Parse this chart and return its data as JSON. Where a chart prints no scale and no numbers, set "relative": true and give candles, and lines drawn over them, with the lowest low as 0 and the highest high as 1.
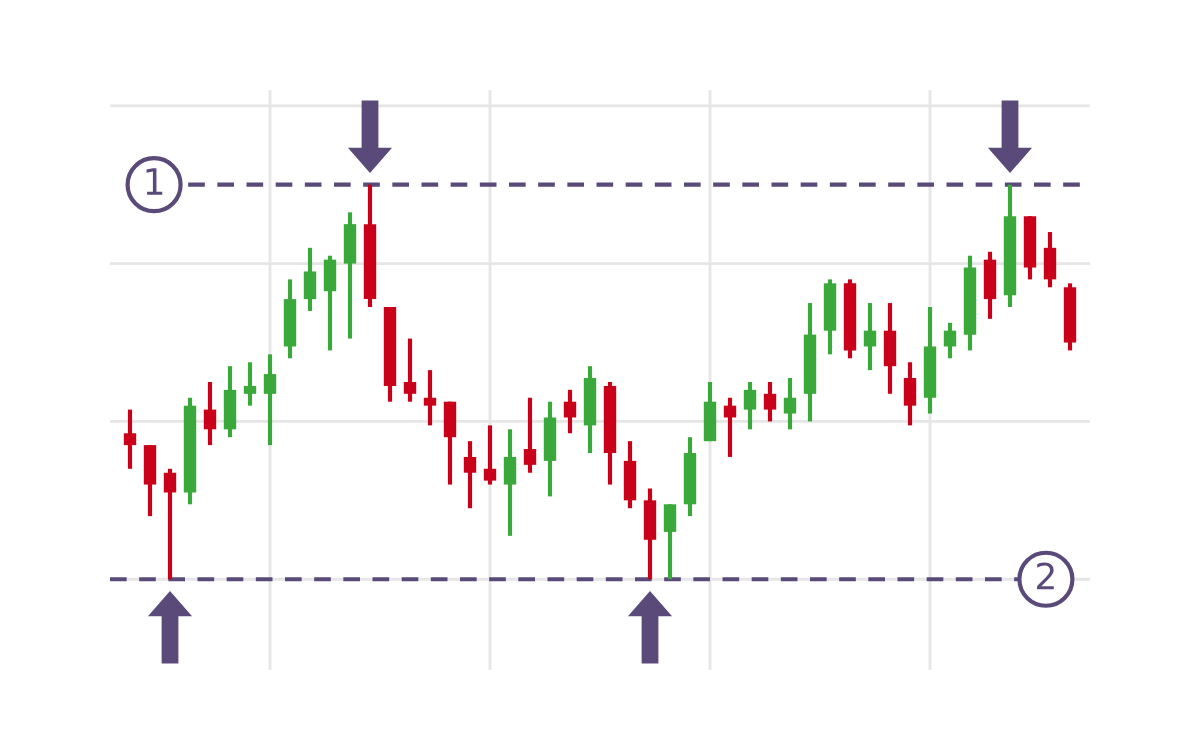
{
  "chart_data": {
    "type": "candlestick",
    "relative": true,
    "categories": [
      null,
      null,
      null,
      null,
      null,
      null,
      null,
      null,
      null,
      null,
      null,
      null,
      null,
      null,
      null,
      null,
      null,
      null,
      null,
      null,
      null,
      null,
      null,
      null,
      null,
      null,
      null,
      null,
      null,
      null,
      null,
      null,
      null,
      null,
      null,
      null,
      null,
      null,
      null,
      null,
      null,
      null,
      null,
      null,
      null,
      null,
      null,
      null
    ],
    "ohlc": [
      [
        0.37,
        0.43,
        0.28,
        0.34
      ],
      [
        0.34,
        0.34,
        0.16,
        0.24
      ],
      [
        0.27,
        0.28,
        0,
        0.22
      ],
      [
        0.22,
        0.46,
        0.19,
        0.44
      ],
      [
        0.43,
        0.5,
        0.34,
        0.38
      ],
      [
        0.38,
        0.54,
        0.36,
        0.48
      ],
      [
        0.47,
        0.55,
        0.44,
        0.49
      ],
      [
        0.47,
        0.57,
        0.34,
        0.52
      ],
      [
        0.59,
        0.76,
        0.56,
        0.71
      ],
      [
        0.71,
        0.84,
        0.68,
        0.78
      ],
      [
        0.73,
        0.82,
        0.58,
        0.81
      ],
      [
        0.8,
        0.93,
        0.61,
        0.9
      ],
      [
        0.9,
        1,
        0.69,
        0.71
      ],
      [
        0.69,
        0.69,
        0.45,
        0.49
      ],
      [
        0.5,
        0.61,
        0.45,
        0.47
      ],
      [
        0.46,
        0.53,
        0.39,
        0.44
      ],
      [
        0.45,
        0.45,
        0.24,
        0.36
      ],
      [
        0.31,
        0.35,
        0.18,
        0.27
      ],
      [
        0.28,
        0.39,
        0.24,
        0.25
      ],
      [
        0.24,
        0.38,
        0.11,
        0.31
      ],
      [
        0.33,
        0.46,
        0.27,
        0.29
      ],
      [
        0.3,
        0.45,
        0.21,
        0.41
      ],
      [
        0.45,
        0.48,
        0.37,
        0.41
      ],
      [
        0.39,
        0.54,
        0.32,
        0.51
      ],
      [
        0.49,
        0.5,
        0.24,
        0.32
      ],
      [
        0.3,
        0.35,
        0.18,
        0.2
      ],
      [
        0.2,
        0.23,
        0,
        0.1
      ],
      [
        0.12,
        0.19,
        0,
        0.19
      ],
      [
        0.19,
        0.36,
        0.16,
        0.32
      ],
      [
        0.35,
        0.5,
        0.35,
        0.45
      ],
      [
        0.44,
        0.46,
        0.31,
        0.41
      ],
      [
        0.43,
        0.5,
        0.38,
        0.48
      ],
      [
        0.47,
        0.5,
        0.4,
        0.43
      ],
      [
        0.42,
        0.51,
        0.38,
        0.46
      ],
      [
        0.47,
        0.7,
        0.4,
        0.62
      ],
      [
        0.63,
        0.76,
        0.57,
        0.75
      ],
      [
        0.75,
        0.76,
        0.56,
        0.58
      ],
      [
        0.59,
        0.7,
        0.53,
        0.63
      ],
      [
        0.63,
        0.7,
        0.47,
        0.54
      ],
      [
        0.51,
        0.55,
        0.39,
        0.44
      ],
      [
        0.46,
        0.69,
        0.42,
        0.59
      ],
      [
        0.59,
        0.65,
        0.56,
        0.63
      ],
      [
        0.62,
        0.82,
        0.58,
        0.79
      ],
      [
        0.81,
        0.83,
        0.66,
        0.71
      ],
      [
        0.72,
        1,
        0.69,
        0.92
      ],
      [
        0.92,
        0.92,
        0.76,
        0.79
      ],
      [
        0.84,
        0.88,
        0.74,
        0.76
      ],
      [
        0.74,
        0.75,
        0.58,
        0.6
      ]
    ],
    "colors": [
      "#c8001a",
      "#c8001a",
      "#c8001a",
      "#3aa83a",
      "#c8001a",
      "#3aa83a",
      "#3aa83a",
      "#3aa83a",
      "#3aa83a",
      "#3aa83a",
      "#3aa83a",
      "#3aa83a",
      "#c8001a",
      "#c8001a",
      "#c8001a",
      "#c8001a",
      "#c8001a",
      "#c8001a",
      "#c8001a",
      "#3aa83a",
      "#c8001a",
      "#3aa83a",
      "#c8001a",
      "#3aa83a",
      "#c8001a",
      "#c8001a",
      "#c8001a",
      "#3aa83a",
      "#3aa83a",
      "#3aa83a",
      "#c8001a",
      "#3aa83a",
      "#c8001a",
      "#3aa83a",
      "#3aa83a",
      "#3aa83a",
      "#c8001a",
      "#3aa83a",
      "#c8001a",
      "#c8001a",
      "#3aa83a",
      "#3aa83a",
      "#3aa83a",
      "#c8001a",
      "#3aa83a",
      "#c8001a",
      "#c8001a",
      "#c8001a"
    ],
    "ref_lines": [
      {
        "axis": "y",
        "value": 1,
        "color": "#5a4a7a",
        "line_style": "dashed"
      },
      {
        "axis": "y",
        "value": 0,
        "color": "#5a4a7a",
        "line_style": "dashed"
      }
    ],
    "annotations": [
      {
        "text": "1",
        "y": 1
      },
      {
        "text": "2",
        "y": 0
      }
    ],
    "grid": true,
    "tick_labels": false
  }
}
